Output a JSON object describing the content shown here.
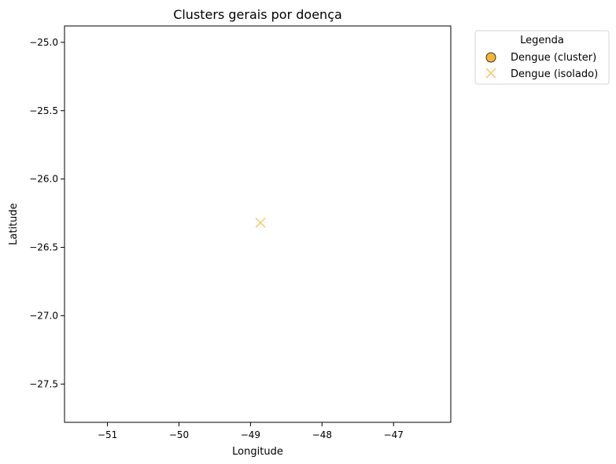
{
  "chart_data": {
    "type": "scatter",
    "title": "Clusters gerais por doença",
    "xlabel": "Longitude",
    "ylabel": "Latitude",
    "xlim": [
      -51.6,
      -46.2
    ],
    "ylim": [
      -27.78,
      -24.88
    ],
    "xticks": [
      -51,
      -50,
      -49,
      -48,
      -47
    ],
    "yticks": [
      -25.0,
      -25.5,
      -26.0,
      -26.5,
      -27.0,
      -27.5
    ],
    "xtick_labels": [
      "−51",
      "−50",
      "−49",
      "−48",
      "−47"
    ],
    "ytick_labels": [
      "−25.0",
      "−25.5",
      "−26.0",
      "−26.5",
      "−27.0",
      "−27.5"
    ],
    "grid": false,
    "legend": {
      "title": "Legenda",
      "placement": "outside-top-right",
      "entries": [
        {
          "label": "Dengue (cluster)",
          "marker": "circle",
          "color": "#f5b731",
          "edge": "#333333"
        },
        {
          "label": "Dengue (isolado)",
          "marker": "x",
          "color": "#fcc974"
        }
      ]
    },
    "series": [
      {
        "name": "Dengue (cluster)",
        "marker": "circle",
        "color": "#f5b731",
        "points": []
      },
      {
        "name": "Dengue (isolado)",
        "marker": "x",
        "color": "#fcc974",
        "points": [
          {
            "x": -48.86,
            "y": -26.32
          }
        ]
      }
    ]
  }
}
